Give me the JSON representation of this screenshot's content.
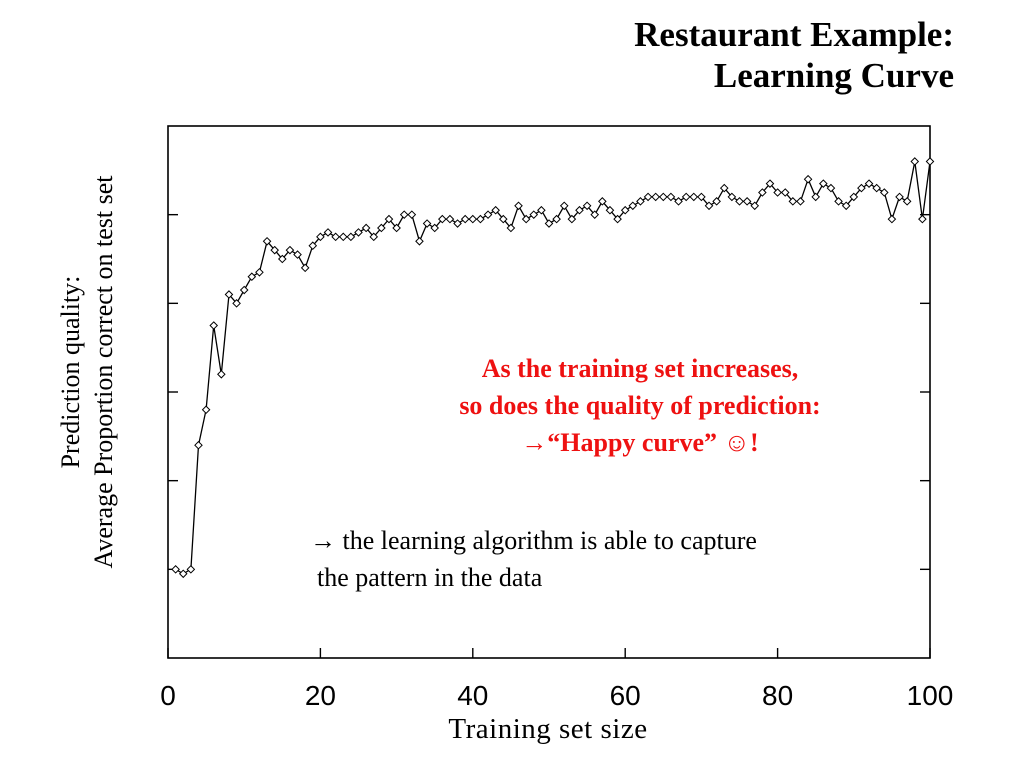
{
  "title": {
    "line1": "Restaurant Example:",
    "line2": "Learning Curve"
  },
  "callout": {
    "line1": "As the training set increases,",
    "line2": "so does the quality of prediction:",
    "line3": "→“Happy curve”  ☺!"
  },
  "note": {
    "line1": "→ the learning algorithm is able to capture",
    "line2": "the pattern in the data"
  },
  "colors": {
    "callout": "#ee1111",
    "line": "#000000",
    "background": "#ffffff"
  },
  "chart_data": {
    "type": "line",
    "xlabel": "Training set size",
    "ylabel": "Prediction quality:\nAverage Proportion correct on test set",
    "xlim": [
      0,
      100
    ],
    "ylim": [
      0.4,
      1.0
    ],
    "x_ticks": [
      "0",
      "20",
      "40",
      "60",
      "80",
      "100"
    ],
    "marker": "diamond",
    "grid": false,
    "x": [
      1,
      2,
      3,
      4,
      5,
      6,
      7,
      8,
      9,
      10,
      11,
      12,
      13,
      14,
      15,
      16,
      17,
      18,
      19,
      20,
      21,
      22,
      23,
      24,
      25,
      26,
      27,
      28,
      29,
      30,
      31,
      32,
      33,
      34,
      35,
      36,
      37,
      38,
      39,
      40,
      41,
      42,
      43,
      44,
      45,
      46,
      47,
      48,
      49,
      50,
      51,
      52,
      53,
      54,
      55,
      56,
      57,
      58,
      59,
      60,
      61,
      62,
      63,
      64,
      65,
      66,
      67,
      68,
      69,
      70,
      71,
      72,
      73,
      74,
      75,
      76,
      77,
      78,
      79,
      80,
      81,
      82,
      83,
      84,
      85,
      86,
      87,
      88,
      89,
      90,
      91,
      92,
      93,
      94,
      95,
      96,
      97,
      98,
      99,
      100
    ],
    "y": [
      0.5,
      0.495,
      0.5,
      0.64,
      0.68,
      0.775,
      0.72,
      0.81,
      0.8,
      0.815,
      0.83,
      0.835,
      0.87,
      0.86,
      0.85,
      0.86,
      0.855,
      0.84,
      0.865,
      0.875,
      0.88,
      0.875,
      0.875,
      0.875,
      0.88,
      0.885,
      0.875,
      0.885,
      0.895,
      0.885,
      0.9,
      0.9,
      0.87,
      0.89,
      0.885,
      0.895,
      0.895,
      0.89,
      0.895,
      0.895,
      0.895,
      0.9,
      0.905,
      0.895,
      0.885,
      0.91,
      0.895,
      0.9,
      0.905,
      0.89,
      0.895,
      0.91,
      0.895,
      0.905,
      0.91,
      0.9,
      0.915,
      0.905,
      0.895,
      0.905,
      0.91,
      0.915,
      0.92,
      0.92,
      0.92,
      0.92,
      0.915,
      0.92,
      0.92,
      0.92,
      0.91,
      0.915,
      0.93,
      0.92,
      0.915,
      0.915,
      0.91,
      0.925,
      0.935,
      0.925,
      0.925,
      0.915,
      0.915,
      0.94,
      0.92,
      0.935,
      0.93,
      0.915,
      0.91,
      0.92,
      0.93,
      0.935,
      0.93,
      0.925,
      0.895,
      0.92,
      0.915,
      0.96,
      0.895,
      0.96
    ]
  }
}
